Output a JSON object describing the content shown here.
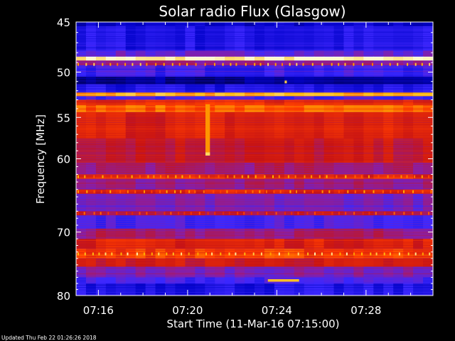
{
  "chart_data": {
    "type": "heatmap",
    "title": "Solar radio Flux (Glasgow)",
    "xlabel": "Start Time (11-Mar-16 07:15:00)",
    "ylabel": "Frequency [MHz]",
    "footer": "Updated Thu Feb 22 01:26:26 2018",
    "x_start": "07:15:00",
    "x_end": "07:31:00",
    "xlim_minutes": [
      0,
      16
    ],
    "x_ticks": [
      {
        "label": "07:16",
        "minutes": 1
      },
      {
        "label": "07:20",
        "minutes": 5
      },
      {
        "label": "07:24",
        "minutes": 9
      },
      {
        "label": "07:28",
        "minutes": 13
      }
    ],
    "ylim": [
      45,
      80
    ],
    "y_scale": "log",
    "y_ticks": [
      {
        "label": "45",
        "value": 45
      },
      {
        "label": "50",
        "value": 50
      },
      {
        "label": "55",
        "value": 55
      },
      {
        "label": "60",
        "value": 60
      },
      {
        "label": "70",
        "value": 70
      },
      {
        "label": "80",
        "value": 80
      }
    ],
    "colormap": [
      "#000060",
      "#0000c8",
      "#3c28ff",
      "#8c1ea0",
      "#c81414",
      "#ff3c00",
      "#ffb400",
      "#ffffdc"
    ],
    "bands": [
      {
        "f0": 45.0,
        "f1": 45.4,
        "intensity": 0.15
      },
      {
        "f0": 45.4,
        "f1": 47.8,
        "intensity": 0.22
      },
      {
        "f0": 47.8,
        "f1": 48.4,
        "intensity": 0.35
      },
      {
        "f0": 48.4,
        "f1": 48.8,
        "intensity": 0.98
      },
      {
        "f0": 48.8,
        "f1": 49.3,
        "intensity": 0.45
      },
      {
        "f0": 49.3,
        "f1": 50.5,
        "intensity": 0.28
      },
      {
        "f0": 50.5,
        "f1": 51.3,
        "intensity": 0.06
      },
      {
        "f0": 51.3,
        "f1": 52.2,
        "intensity": 0.22
      },
      {
        "f0": 52.2,
        "f1": 52.6,
        "intensity": 0.85
      },
      {
        "f0": 52.6,
        "f1": 53.0,
        "intensity": 0.3
      },
      {
        "f0": 53.0,
        "f1": 53.6,
        "intensity": 0.66
      },
      {
        "f0": 53.6,
        "f1": 54.4,
        "intensity": 0.75
      },
      {
        "f0": 54.4,
        "f1": 57.5,
        "intensity": 0.62
      },
      {
        "f0": 57.5,
        "f1": 60.5,
        "intensity": 0.56
      },
      {
        "f0": 60.5,
        "f1": 62.0,
        "intensity": 0.48
      },
      {
        "f0": 62.0,
        "f1": 62.6,
        "intensity": 0.64
      },
      {
        "f0": 62.6,
        "f1": 64.0,
        "intensity": 0.45
      },
      {
        "f0": 64.0,
        "f1": 64.6,
        "intensity": 0.62
      },
      {
        "f0": 64.6,
        "f1": 67.0,
        "intensity": 0.38
      },
      {
        "f0": 67.0,
        "f1": 67.6,
        "intensity": 0.55
      },
      {
        "f0": 67.6,
        "f1": 69.5,
        "intensity": 0.3
      },
      {
        "f0": 69.5,
        "f1": 71.0,
        "intensity": 0.48
      },
      {
        "f0": 71.0,
        "f1": 72.5,
        "intensity": 0.62
      },
      {
        "f0": 72.5,
        "f1": 74.0,
        "intensity": 0.7
      },
      {
        "f0": 74.0,
        "f1": 75.3,
        "intensity": 0.58
      },
      {
        "f0": 75.3,
        "f1": 77.0,
        "intensity": 0.4
      },
      {
        "f0": 77.0,
        "f1": 78.0,
        "intensity": 0.3
      },
      {
        "f0": 78.0,
        "f1": 80.0,
        "intensity": 0.22
      }
    ],
    "striped_rows": [
      {
        "f": 49.2,
        "intensity": 0.85
      },
      {
        "f": 62.3,
        "intensity": 0.8
      },
      {
        "f": 64.3,
        "intensity": 0.78
      },
      {
        "f": 67.3,
        "intensity": 0.7
      },
      {
        "f": 73.3,
        "intensity": 0.9
      }
    ],
    "features": [
      {
        "minutes_start": 5.8,
        "minutes_end": 6.0,
        "f0": 53.5,
        "f1": 59.5,
        "intensity": 0.82
      },
      {
        "minutes_start": 5.8,
        "minutes_end": 6.0,
        "f0": 59.2,
        "f1": 59.6,
        "intensity": 0.92
      },
      {
        "minutes_start": 9.35,
        "minutes_end": 9.45,
        "f0": 50.9,
        "f1": 51.2,
        "intensity": 0.9
      },
      {
        "minutes_start": 8.6,
        "minutes_end": 10.0,
        "f0": 77.3,
        "f1": 77.7,
        "intensity": 0.88
      }
    ]
  }
}
